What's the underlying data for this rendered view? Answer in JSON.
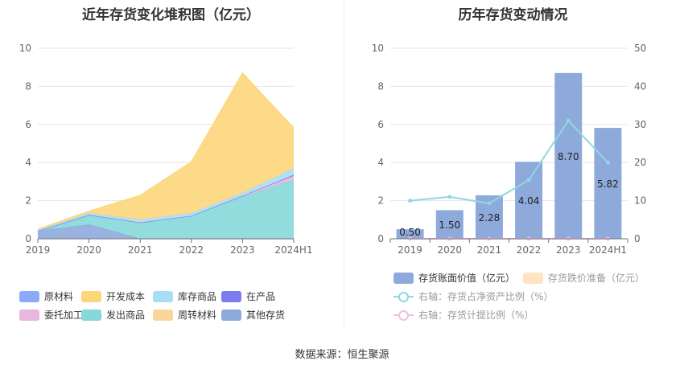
{
  "source": "数据来源：恒生聚源",
  "chart_data": [
    {
      "type": "area",
      "stacked": true,
      "title": "近年存货变化堆积图（亿元）",
      "x": [
        "2019",
        "2020",
        "2021",
        "2022",
        "2023",
        "2024H1"
      ],
      "ylim": [
        0,
        10
      ],
      "yticks": [
        0,
        2,
        4,
        6,
        8,
        10
      ],
      "grid": true,
      "legend_position": "bottom",
      "series": [
        {
          "name": "其他存货",
          "color": "#8eaadb",
          "values": [
            0.4,
            0.75,
            0.0,
            0.0,
            0.0,
            0.0
          ]
        },
        {
          "name": "发出商品",
          "color": "#86d8d9",
          "values": [
            0.0,
            0.5,
            0.85,
            1.2,
            2.2,
            3.1
          ]
        },
        {
          "name": "委托加工材料",
          "color": "#e8b7dd",
          "values": [
            0.0,
            0.0,
            0.0,
            0.0,
            0.05,
            0.2
          ]
        },
        {
          "name": "在产品",
          "color": "#7b7cee",
          "values": [
            0.0,
            0.0,
            0.0,
            0.0,
            0.0,
            0.05
          ]
        },
        {
          "name": "库存商品",
          "color": "#a8def5",
          "values": [
            0.05,
            0.1,
            0.15,
            0.15,
            0.15,
            0.35
          ]
        },
        {
          "name": "开发成本",
          "color": "#fdd67a",
          "values": [
            0.05,
            0.1,
            1.28,
            2.69,
            6.3,
            2.12
          ]
        },
        {
          "name": "周转材料",
          "color": "#fbd69c",
          "values": [
            0.0,
            0.0,
            0.0,
            0.0,
            0.0,
            0.0
          ]
        },
        {
          "name": "原材料",
          "color": "#8baaf7",
          "values": [
            0.0,
            0.0,
            0.0,
            0.0,
            0.0,
            0.0
          ]
        }
      ],
      "legend": [
        "原材料",
        "开发成本",
        "库存商品",
        "在产品",
        "委托加工材料",
        "发出商品",
        "周转材料",
        "其他存货"
      ]
    },
    {
      "type": "bar",
      "title": "历年存货变动情况",
      "categories": [
        "2019",
        "2020",
        "2021",
        "2022",
        "2023",
        "2024H1"
      ],
      "ylim": [
        0,
        10
      ],
      "yticks": [
        0,
        2,
        4,
        6,
        8,
        10
      ],
      "y2lim": [
        0,
        50
      ],
      "y2ticks": [
        0,
        10,
        20,
        30,
        40,
        50
      ],
      "grid": true,
      "legend_position": "bottom",
      "series": [
        {
          "name": "存货账面价值（亿元）",
          "type": "bar",
          "color": "#8eaadb",
          "values": [
            0.5,
            1.5,
            2.28,
            4.04,
            8.7,
            5.82
          ],
          "labels": [
            "0.50",
            "1.50",
            "2.28",
            "4.04",
            "8.70",
            "5.82"
          ]
        },
        {
          "name": "存货跌价准备（亿元）",
          "type": "bar",
          "color": "#fde4c3",
          "values": [
            0,
            0,
            0,
            0,
            0,
            0
          ]
        },
        {
          "name": "右轴：存货占净资产比例（%）",
          "type": "line",
          "axis": "right",
          "color": "#8ed8de",
          "values": [
            10.0,
            11.0,
            9.3,
            15.4,
            31.0,
            20.0
          ]
        },
        {
          "name": "右轴：存货计提比例（%）",
          "type": "line",
          "axis": "right",
          "color": "#efc0df",
          "values": [
            0,
            0,
            0,
            0,
            0,
            0
          ]
        }
      ]
    }
  ]
}
